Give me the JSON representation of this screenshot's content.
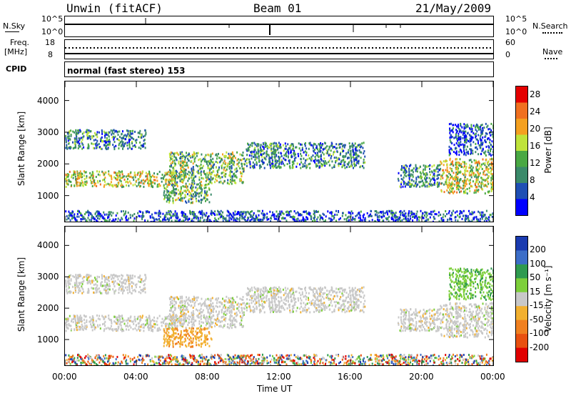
{
  "header": {
    "station": "Unwin (fitACF)",
    "beam": "Beam 01",
    "date": "21/May/2009"
  },
  "aux": {
    "nsky_label": "N.Sky",
    "nsearch_label": "N.Search",
    "nsky_ticks": [
      "10^5",
      "10^0"
    ],
    "nsearch_ticks": [
      "10^5",
      "10^0"
    ],
    "freq_label_line1": "Freq.",
    "freq_label_line2": "[MHz]",
    "freq_ticks": [
      "18",
      "8"
    ],
    "nave_label": "Nave",
    "nave_ticks": [
      "60",
      "0"
    ],
    "cpid_label": "CPID",
    "cpid_text": "normal (fast stereo) 153"
  },
  "chart_data": [
    {
      "type": "heatmap",
      "name": "power",
      "ylabel": "Slant Range [km]",
      "y_ticks": [
        1000,
        2000,
        3000,
        4000
      ],
      "ylim": [
        180,
        4600
      ],
      "xlim": [
        0,
        24
      ],
      "x_ticks": [
        0,
        4,
        8,
        12,
        16,
        20,
        24
      ],
      "colorbar": {
        "label": "Power [dB]",
        "ticks": [
          4,
          8,
          12,
          16,
          20,
          24,
          28
        ],
        "range": [
          0,
          30
        ],
        "colors": [
          "#0000ff",
          "#1f4fb4",
          "#3a8a6a",
          "#49a843",
          "#bfe33a",
          "#f4a020",
          "#f07020",
          "#e40000"
        ]
      },
      "bands": [
        {
          "start": 0.0,
          "end": 6.2,
          "y": [
            1300,
            1800
          ],
          "value": 18
        },
        {
          "start": 0.0,
          "end": 4.5,
          "y": [
            2500,
            3100
          ],
          "value": 8
        },
        {
          "start": 5.8,
          "end": 10.0,
          "y": [
            1400,
            2400
          ],
          "value": 14
        },
        {
          "start": 5.5,
          "end": 8.2,
          "y": [
            800,
            1400
          ],
          "value": 12
        },
        {
          "start": 10.0,
          "end": 16.8,
          "y": [
            1900,
            2700
          ],
          "value": 10
        },
        {
          "start": 18.6,
          "end": 21.0,
          "y": [
            1300,
            2000
          ],
          "value": 8
        },
        {
          "start": 21.0,
          "end": 24.0,
          "y": [
            1100,
            2200
          ],
          "value": 18
        },
        {
          "start": 21.5,
          "end": 24.0,
          "y": [
            2300,
            3300
          ],
          "value": 6
        },
        {
          "start": 0.0,
          "end": 24.0,
          "y": [
            200,
            550
          ],
          "value": 6
        }
      ],
      "time_axis_label": "Time UT",
      "time_tick_labels": [
        "00:00",
        "04:00",
        "08:00",
        "12:00",
        "16:00",
        "20:00",
        "00:00"
      ]
    },
    {
      "type": "heatmap",
      "name": "velocity",
      "ylabel": "Slant Range [km]",
      "y_ticks": [
        1000,
        2000,
        3000,
        4000
      ],
      "ylim": [
        180,
        4600
      ],
      "xlim": [
        0,
        24
      ],
      "x_ticks": [
        0,
        4,
        8,
        12,
        16,
        20,
        24
      ],
      "colorbar": {
        "label": "Velocity [m s⁻¹]",
        "ticks": [
          "200",
          "100",
          "50",
          "15",
          "-15",
          "-50",
          "-100",
          "-200"
        ],
        "colors": [
          "#1a3bb0",
          "#3c6ec8",
          "#2f9a4f",
          "#7dcf3a",
          "#c8c8c8",
          "#f2b030",
          "#f08020",
          "#e85010",
          "#e00000"
        ]
      },
      "bands": [
        {
          "start": 0.0,
          "end": 6.2,
          "y": [
            1300,
            1800
          ],
          "value": "ground"
        },
        {
          "start": 0.0,
          "end": 4.5,
          "y": [
            2500,
            3100
          ],
          "value": "ground"
        },
        {
          "start": 5.8,
          "end": 10.0,
          "y": [
            1400,
            2400
          ],
          "value": "ground"
        },
        {
          "start": 5.5,
          "end": 8.2,
          "y": [
            800,
            1400
          ],
          "value": "-50"
        },
        {
          "start": 10.0,
          "end": 16.8,
          "y": [
            1900,
            2700
          ],
          "value": "ground"
        },
        {
          "start": 18.6,
          "end": 21.0,
          "y": [
            1300,
            2000
          ],
          "value": "ground"
        },
        {
          "start": 21.0,
          "end": 24.0,
          "y": [
            1100,
            2200
          ],
          "value": "ground"
        },
        {
          "start": 21.5,
          "end": 24.0,
          "y": [
            2300,
            3300
          ],
          "value": "50"
        },
        {
          "start": 0.0,
          "end": 24.0,
          "y": [
            200,
            550
          ],
          "value": "mixed"
        }
      ]
    }
  ]
}
